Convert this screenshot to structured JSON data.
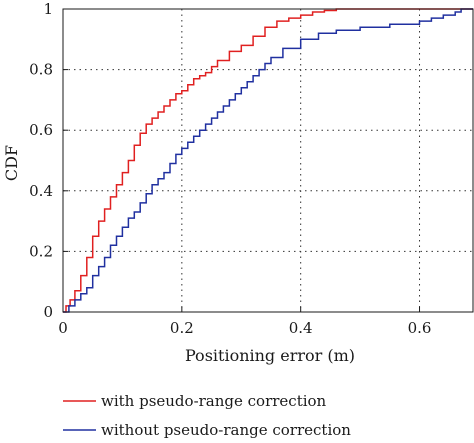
{
  "chart_data": {
    "type": "line",
    "xlabel": "Positioning error (m)",
    "ylabel": "CDF",
    "xlim": [
      0,
      0.69
    ],
    "ylim": [
      0,
      1
    ],
    "x_ticks": [
      "0",
      "0.2",
      "0.4",
      "0.6"
    ],
    "x_tick_values": [
      0,
      0.2,
      0.4,
      0.6
    ],
    "y_ticks": [
      "0",
      "0.2",
      "0.4",
      "0.6",
      "0.8",
      "1"
    ],
    "y_tick_values": [
      0,
      0.2,
      0.4,
      0.6,
      0.8,
      1
    ],
    "grid": "dotted",
    "legend_position": "bottom",
    "series": [
      {
        "name": "with pseudo-range correction",
        "color": "#e02020",
        "x": [
          0,
          0.005,
          0.012,
          0.02,
          0.03,
          0.04,
          0.05,
          0.06,
          0.07,
          0.08,
          0.09,
          0.1,
          0.11,
          0.12,
          0.13,
          0.14,
          0.15,
          0.16,
          0.17,
          0.18,
          0.19,
          0.2,
          0.21,
          0.22,
          0.23,
          0.24,
          0.25,
          0.26,
          0.28,
          0.3,
          0.32,
          0.34,
          0.36,
          0.38,
          0.4,
          0.42,
          0.44,
          0.46,
          0.48,
          0.5
        ],
        "y": [
          0,
          0.02,
          0.04,
          0.07,
          0.12,
          0.18,
          0.25,
          0.3,
          0.34,
          0.38,
          0.42,
          0.46,
          0.5,
          0.55,
          0.59,
          0.62,
          0.64,
          0.66,
          0.68,
          0.7,
          0.72,
          0.73,
          0.75,
          0.77,
          0.78,
          0.79,
          0.81,
          0.83,
          0.86,
          0.88,
          0.91,
          0.94,
          0.96,
          0.97,
          0.98,
          0.99,
          0.995,
          1,
          1,
          1
        ]
      },
      {
        "name": "without pseudo-range correction",
        "color": "#2030a0",
        "x": [
          0,
          0.01,
          0.02,
          0.03,
          0.04,
          0.05,
          0.06,
          0.07,
          0.08,
          0.09,
          0.1,
          0.11,
          0.12,
          0.13,
          0.14,
          0.15,
          0.16,
          0.17,
          0.18,
          0.19,
          0.2,
          0.21,
          0.22,
          0.23,
          0.24,
          0.25,
          0.26,
          0.27,
          0.28,
          0.29,
          0.3,
          0.31,
          0.32,
          0.33,
          0.34,
          0.35,
          0.37,
          0.4,
          0.43,
          0.46,
          0.5,
          0.55,
          0.6,
          0.62,
          0.64,
          0.66,
          0.67,
          0.68,
          0.69
        ],
        "y": [
          0,
          0.02,
          0.04,
          0.06,
          0.08,
          0.12,
          0.15,
          0.18,
          0.22,
          0.25,
          0.28,
          0.31,
          0.33,
          0.36,
          0.39,
          0.42,
          0.44,
          0.46,
          0.49,
          0.52,
          0.54,
          0.56,
          0.58,
          0.6,
          0.62,
          0.64,
          0.66,
          0.68,
          0.7,
          0.72,
          0.74,
          0.76,
          0.78,
          0.8,
          0.82,
          0.84,
          0.87,
          0.9,
          0.92,
          0.93,
          0.94,
          0.95,
          0.96,
          0.97,
          0.98,
          0.99,
          1,
          1,
          1
        ]
      }
    ]
  }
}
